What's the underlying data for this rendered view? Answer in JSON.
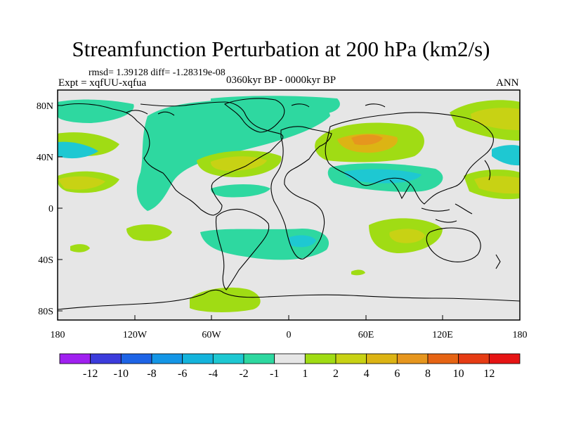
{
  "title": "Streamfunction Perturbation at 200 hPa (km2/s)",
  "rmsd_line": "rmsd= 1.39128 diff= -1.28319e-08",
  "expt_line": "Expt = xqfUU-xqfua",
  "period_line": "0360kyr BP - 0000kyr BP",
  "season": "ANN",
  "lat_labels": [
    "80N",
    "40N",
    "0",
    "40S",
    "80S"
  ],
  "lon_labels": [
    "180",
    "120W",
    "60W",
    "0",
    "60E",
    "120E",
    "180"
  ],
  "colorbar": {
    "labels": [
      "-12",
      "-10",
      "-8",
      "-6",
      "-4",
      "-2",
      "-1",
      "1",
      "2",
      "4",
      "6",
      "8",
      "10",
      "12"
    ],
    "colors": [
      "#a020f0",
      "#3c3cdc",
      "#1e64e6",
      "#1496e6",
      "#14b4dc",
      "#1ec8d2",
      "#2ed8a0",
      "#e6e6e6",
      "#a0dc14",
      "#c8d214",
      "#dcb414",
      "#e6961e",
      "#e66414",
      "#e63c14",
      "#e61414"
    ]
  },
  "palette": {
    "land_outline": "#000000",
    "neutral": "#e6e6e6"
  }
}
